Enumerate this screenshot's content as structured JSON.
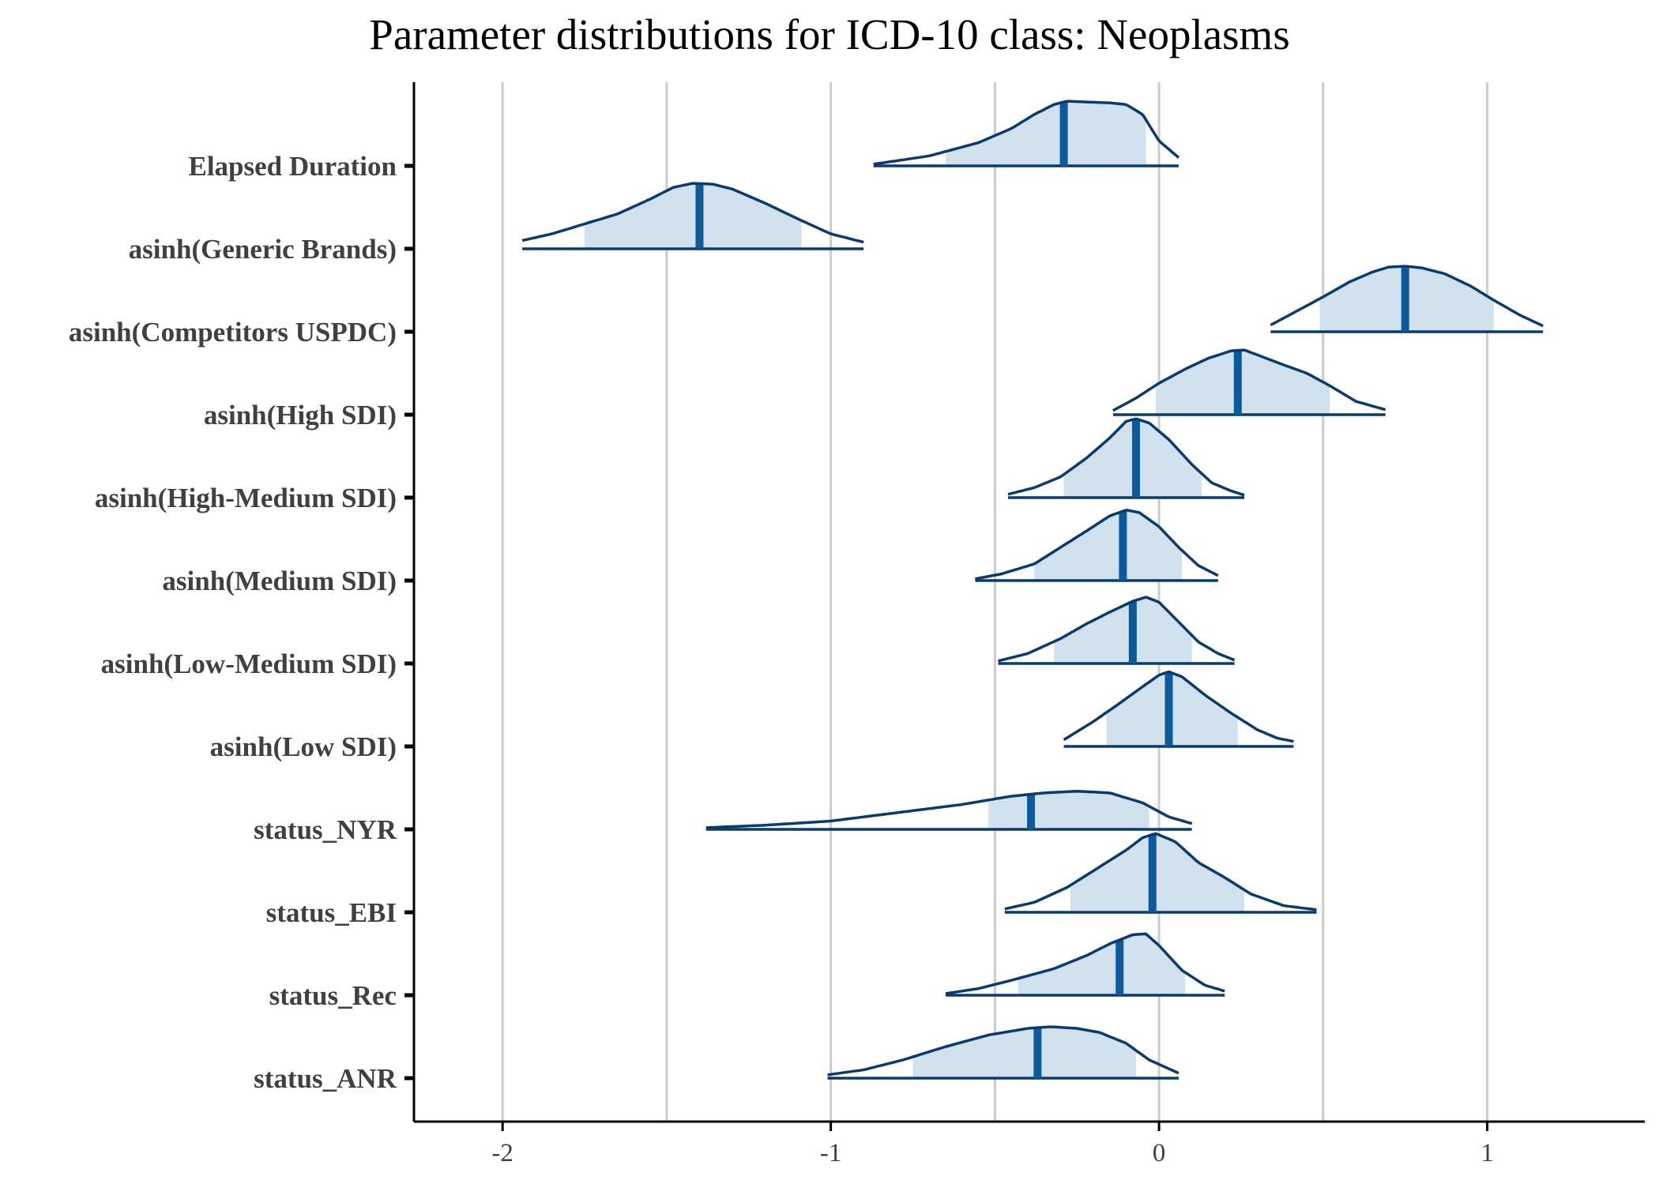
{
  "chart_data": {
    "type": "ridgeline",
    "title": "Parameter distributions for ICD-10 class: Neoplasms",
    "xlabel": "",
    "ylabel": "",
    "xlim": [
      -2.27,
      1.48
    ],
    "x_ticks": [
      -2,
      -1,
      0,
      1
    ],
    "x_tick_labels": [
      "-2",
      "-1",
      "0",
      "1"
    ],
    "gridlines_x": [
      -2,
      -1.5,
      -1,
      -0.5,
      0,
      0.5,
      1
    ],
    "grid": true,
    "legend": "none",
    "colors": {
      "outline": "#0b3a6e",
      "fill": "#d1e1ed",
      "point_estimate": "#0b5a9c",
      "grid": "#cccccc",
      "axis": "#000000",
      "label": "#404040"
    },
    "series": [
      {
        "name": "Elapsed Duration",
        "median": -0.29,
        "inner": [
          -0.65,
          -0.04
        ],
        "range": [
          -0.87,
          0.06
        ],
        "density": [
          [
            -0.87,
            0.02
          ],
          [
            -0.7,
            0.12
          ],
          [
            -0.55,
            0.28
          ],
          [
            -0.45,
            0.45
          ],
          [
            -0.38,
            0.62
          ],
          [
            -0.32,
            0.74
          ],
          [
            -0.28,
            0.78
          ],
          [
            -0.22,
            0.77
          ],
          [
            -0.15,
            0.76
          ],
          [
            -0.1,
            0.74
          ],
          [
            -0.05,
            0.62
          ],
          [
            0.0,
            0.3
          ],
          [
            0.06,
            0.1
          ]
        ]
      },
      {
        "name": "asinh(Generic Brands)",
        "median": -1.4,
        "inner": [
          -1.75,
          -1.09
        ],
        "range": [
          -1.94,
          -0.9
        ],
        "density": [
          [
            -1.94,
            0.1
          ],
          [
            -1.85,
            0.18
          ],
          [
            -1.75,
            0.3
          ],
          [
            -1.65,
            0.42
          ],
          [
            -1.55,
            0.6
          ],
          [
            -1.48,
            0.74
          ],
          [
            -1.42,
            0.79
          ],
          [
            -1.36,
            0.78
          ],
          [
            -1.3,
            0.72
          ],
          [
            -1.2,
            0.55
          ],
          [
            -1.1,
            0.36
          ],
          [
            -1.0,
            0.18
          ],
          [
            -0.9,
            0.08
          ]
        ]
      },
      {
        "name": "asinh(Competitors USPDC)",
        "median": 0.75,
        "inner": [
          0.49,
          1.02
        ],
        "range": [
          0.34,
          1.17
        ],
        "density": [
          [
            0.34,
            0.08
          ],
          [
            0.42,
            0.25
          ],
          [
            0.5,
            0.42
          ],
          [
            0.58,
            0.6
          ],
          [
            0.65,
            0.72
          ],
          [
            0.7,
            0.78
          ],
          [
            0.75,
            0.79
          ],
          [
            0.8,
            0.77
          ],
          [
            0.87,
            0.7
          ],
          [
            0.95,
            0.55
          ],
          [
            1.02,
            0.38
          ],
          [
            1.1,
            0.2
          ],
          [
            1.17,
            0.07
          ]
        ]
      },
      {
        "name": "asinh(High SDI)",
        "median": 0.24,
        "inner": [
          -0.01,
          0.52
        ],
        "range": [
          -0.14,
          0.69
        ],
        "density": [
          [
            -0.14,
            0.05
          ],
          [
            -0.07,
            0.2
          ],
          [
            0.0,
            0.38
          ],
          [
            0.08,
            0.55
          ],
          [
            0.15,
            0.68
          ],
          [
            0.22,
            0.77
          ],
          [
            0.26,
            0.78
          ],
          [
            0.3,
            0.72
          ],
          [
            0.38,
            0.6
          ],
          [
            0.45,
            0.5
          ],
          [
            0.52,
            0.35
          ],
          [
            0.6,
            0.16
          ],
          [
            0.69,
            0.06
          ]
        ]
      },
      {
        "name": "asinh(High-Medium SDI)",
        "median": -0.07,
        "inner": [
          -0.29,
          0.13
        ],
        "range": [
          -0.46,
          0.26
        ],
        "density": [
          [
            -0.46,
            0.04
          ],
          [
            -0.38,
            0.12
          ],
          [
            -0.3,
            0.25
          ],
          [
            -0.22,
            0.48
          ],
          [
            -0.15,
            0.72
          ],
          [
            -0.1,
            0.92
          ],
          [
            -0.07,
            0.95
          ],
          [
            -0.03,
            0.9
          ],
          [
            0.03,
            0.7
          ],
          [
            0.1,
            0.4
          ],
          [
            0.16,
            0.18
          ],
          [
            0.22,
            0.08
          ],
          [
            0.26,
            0.03
          ]
        ]
      },
      {
        "name": "asinh(Medium SDI)",
        "median": -0.11,
        "inner": [
          -0.38,
          0.07
        ],
        "range": [
          -0.56,
          0.18
        ],
        "density": [
          [
            -0.56,
            0.02
          ],
          [
            -0.48,
            0.08
          ],
          [
            -0.38,
            0.2
          ],
          [
            -0.3,
            0.4
          ],
          [
            -0.22,
            0.6
          ],
          [
            -0.15,
            0.78
          ],
          [
            -0.1,
            0.85
          ],
          [
            -0.06,
            0.82
          ],
          [
            0.0,
            0.65
          ],
          [
            0.06,
            0.4
          ],
          [
            0.12,
            0.18
          ],
          [
            0.18,
            0.06
          ]
        ]
      },
      {
        "name": "asinh(Low-Medium SDI)",
        "median": -0.08,
        "inner": [
          -0.32,
          0.1
        ],
        "range": [
          -0.49,
          0.23
        ],
        "density": [
          [
            -0.49,
            0.03
          ],
          [
            -0.4,
            0.12
          ],
          [
            -0.3,
            0.3
          ],
          [
            -0.22,
            0.48
          ],
          [
            -0.15,
            0.62
          ],
          [
            -0.08,
            0.75
          ],
          [
            -0.04,
            0.8
          ],
          [
            0.0,
            0.74
          ],
          [
            0.06,
            0.5
          ],
          [
            0.12,
            0.26
          ],
          [
            0.18,
            0.12
          ],
          [
            0.23,
            0.04
          ]
        ]
      },
      {
        "name": "asinh(Low SDI)",
        "median": 0.03,
        "inner": [
          -0.16,
          0.24
        ],
        "range": [
          -0.29,
          0.41
        ],
        "density": [
          [
            -0.29,
            0.08
          ],
          [
            -0.2,
            0.3
          ],
          [
            -0.12,
            0.52
          ],
          [
            -0.05,
            0.72
          ],
          [
            0.0,
            0.86
          ],
          [
            0.03,
            0.9
          ],
          [
            0.07,
            0.84
          ],
          [
            0.14,
            0.62
          ],
          [
            0.22,
            0.4
          ],
          [
            0.3,
            0.2
          ],
          [
            0.36,
            0.1
          ],
          [
            0.41,
            0.06
          ]
        ]
      },
      {
        "name": "status_NYR",
        "median": -0.39,
        "inner": [
          -0.52,
          -0.03
        ],
        "range": [
          -1.38,
          0.1
        ],
        "density": [
          [
            -1.38,
            0.02
          ],
          [
            -1.2,
            0.05
          ],
          [
            -1.0,
            0.1
          ],
          [
            -0.8,
            0.2
          ],
          [
            -0.6,
            0.3
          ],
          [
            -0.45,
            0.4
          ],
          [
            -0.35,
            0.44
          ],
          [
            -0.25,
            0.46
          ],
          [
            -0.15,
            0.44
          ],
          [
            -0.05,
            0.32
          ],
          [
            0.03,
            0.15
          ],
          [
            0.1,
            0.07
          ]
        ]
      },
      {
        "name": "status_EBI",
        "median": -0.02,
        "inner": [
          -0.27,
          0.26
        ],
        "range": [
          -0.47,
          0.48
        ],
        "density": [
          [
            -0.47,
            0.04
          ],
          [
            -0.38,
            0.12
          ],
          [
            -0.28,
            0.3
          ],
          [
            -0.18,
            0.55
          ],
          [
            -0.1,
            0.75
          ],
          [
            -0.05,
            0.9
          ],
          [
            -0.01,
            0.95
          ],
          [
            0.05,
            0.85
          ],
          [
            0.12,
            0.6
          ],
          [
            0.2,
            0.42
          ],
          [
            0.28,
            0.22
          ],
          [
            0.38,
            0.08
          ],
          [
            0.48,
            0.03
          ]
        ]
      },
      {
        "name": "status_Rec",
        "median": -0.12,
        "inner": [
          -0.43,
          0.08
        ],
        "range": [
          -0.65,
          0.2
        ],
        "density": [
          [
            -0.65,
            0.02
          ],
          [
            -0.55,
            0.08
          ],
          [
            -0.45,
            0.18
          ],
          [
            -0.32,
            0.32
          ],
          [
            -0.22,
            0.48
          ],
          [
            -0.15,
            0.62
          ],
          [
            -0.08,
            0.73
          ],
          [
            -0.04,
            0.74
          ],
          [
            0.0,
            0.6
          ],
          [
            0.07,
            0.3
          ],
          [
            0.14,
            0.12
          ],
          [
            0.2,
            0.05
          ]
        ]
      },
      {
        "name": "status_ANR",
        "median": -0.37,
        "inner": [
          -0.75,
          -0.07
        ],
        "range": [
          -1.01,
          0.06
        ],
        "density": [
          [
            -1.01,
            0.04
          ],
          [
            -0.9,
            0.1
          ],
          [
            -0.78,
            0.22
          ],
          [
            -0.65,
            0.38
          ],
          [
            -0.52,
            0.52
          ],
          [
            -0.4,
            0.6
          ],
          [
            -0.33,
            0.62
          ],
          [
            -0.25,
            0.6
          ],
          [
            -0.18,
            0.55
          ],
          [
            -0.1,
            0.42
          ],
          [
            -0.03,
            0.22
          ],
          [
            0.06,
            0.06
          ]
        ]
      }
    ]
  }
}
